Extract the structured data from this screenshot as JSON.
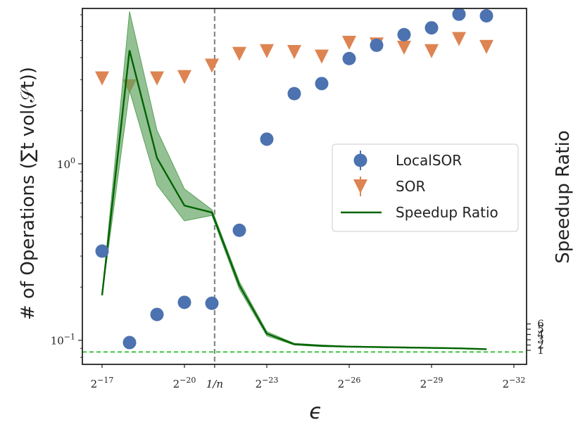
{
  "chart_data": {
    "type": "scatter",
    "xlabel": "ϵ",
    "ylabel": "# of Operations (∑t vol(𝒮t))",
    "ylabel_right": "Speedup Ratio",
    "y_scale": "log",
    "ylim": [
      0.073,
      7.6
    ],
    "xlim": [
      -16.7,
      -32.5
    ],
    "x_ticks": [
      {
        "x": -17,
        "label": "2^{-17}",
        "base": "2",
        "exp": "−17"
      },
      {
        "x": -20,
        "label": "2^{-20}",
        "base": "2",
        "exp": "−20"
      },
      {
        "x": -21.1,
        "label": "1/n"
      },
      {
        "x": -23,
        "label": "2^{-23}",
        "base": "2",
        "exp": "−23"
      },
      {
        "x": -26,
        "label": "2^{-26}",
        "base": "2",
        "exp": "−26"
      },
      {
        "x": -29,
        "label": "2^{-29}",
        "base": "2",
        "exp": "−29"
      },
      {
        "x": -32,
        "label": "2^{-32}",
        "base": "2",
        "exp": "−32"
      }
    ],
    "y_ticks": [
      {
        "y": 0.1,
        "base": "10",
        "exp": "−1"
      },
      {
        "y": 1,
        "base": "10",
        "exp": "0"
      }
    ],
    "right_ticks": [
      "1",
      "2",
      "3",
      "4",
      "5",
      "6"
    ],
    "vline_x": -21.1,
    "hline_speedup": 1,
    "legend_position": "center-right",
    "series": [
      {
        "name": "LocalSOR",
        "kind": "circle",
        "color": "#4c72b0",
        "x": [
          -17,
          -18,
          -19,
          -20,
          -21,
          -22,
          -23,
          -24,
          -25,
          -26,
          -27,
          -28,
          -29,
          -30,
          -31
        ],
        "y": [
          0.32,
          0.097,
          0.14,
          0.164,
          0.162,
          0.42,
          1.38,
          2.5,
          2.85,
          3.95,
          4.7,
          5.4,
          5.9,
          7.05,
          6.9
        ]
      },
      {
        "name": "SOR",
        "kind": "triangle-down",
        "color": "#dd8452",
        "x": [
          -17,
          -18,
          -19,
          -20,
          -21,
          -22,
          -23,
          -24,
          -25,
          -26,
          -27,
          -28,
          -29,
          -30,
          -31
        ],
        "y": [
          3.05,
          2.75,
          3.05,
          3.1,
          3.6,
          4.2,
          4.35,
          4.3,
          4.05,
          4.85,
          4.75,
          4.55,
          4.35,
          5.1,
          4.6
        ]
      },
      {
        "name": "Speedup Ratio",
        "kind": "line",
        "color": "#006400",
        "band_color": "#5aa05a",
        "x": [
          -17,
          -18,
          -19,
          -20,
          -21,
          -22,
          -23,
          -24,
          -25,
          -26,
          -27,
          -28,
          -29,
          -30,
          -31
        ],
        "y": [
          0.18,
          4.4,
          1.08,
          0.58,
          0.53,
          0.205,
          0.109,
          0.095,
          0.093,
          0.092,
          0.0915,
          0.091,
          0.0905,
          0.09,
          0.089
        ],
        "band_upper": [
          0.18,
          7.3,
          1.55,
          0.72,
          0.55,
          0.215,
          0.112,
          0.096,
          0.094,
          0.0925,
          0.092,
          0.0915,
          0.091,
          0.0905,
          0.0895
        ],
        "band_lower": [
          0.18,
          2.6,
          0.76,
          0.475,
          0.51,
          0.195,
          0.106,
          0.094,
          0.092,
          0.0915,
          0.091,
          0.0905,
          0.09,
          0.0895,
          0.0885
        ]
      }
    ]
  }
}
